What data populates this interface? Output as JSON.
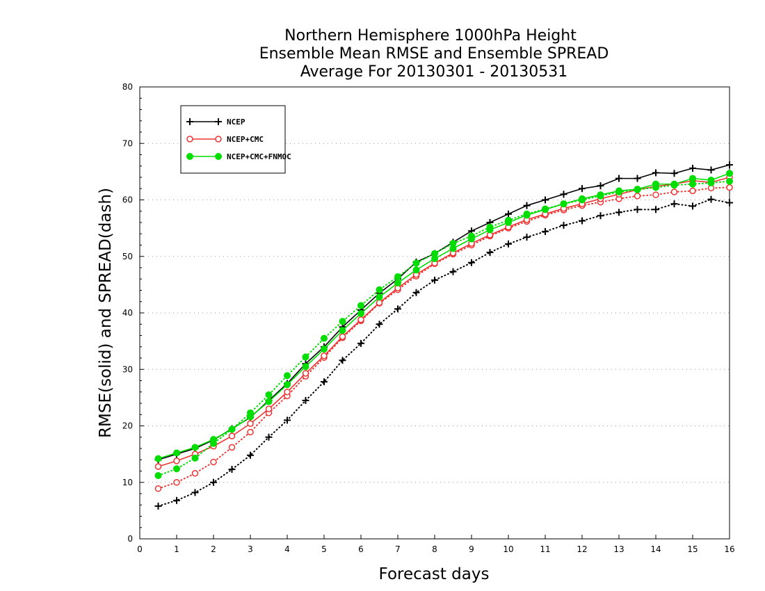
{
  "chart_data": {
    "type": "line",
    "title": [
      "Northern Hemisphere 1000hPa Height",
      "Ensemble Mean RMSE and Ensemble SPREAD",
      "Average For 20130301 - 20130531"
    ],
    "xlabel": "Forecast days",
    "ylabel": "RMSE(solid) and SPREAD(dash)",
    "xlim": [
      0,
      16
    ],
    "ylim": [
      0,
      80
    ],
    "xticks": [
      0,
      1,
      2,
      3,
      4,
      5,
      6,
      7,
      8,
      9,
      10,
      11,
      12,
      13,
      14,
      15,
      16
    ],
    "yticks": [
      0,
      10,
      20,
      30,
      40,
      50,
      60,
      70,
      80
    ],
    "grid": "horizontal dotted",
    "legend_position": "top-left",
    "x": [
      0.5,
      1,
      1.5,
      2,
      2.5,
      3,
      3.5,
      4,
      4.5,
      5,
      5.5,
      6,
      6.5,
      7,
      7.5,
      8,
      8.5,
      9,
      9.5,
      10,
      10.5,
      11,
      11.5,
      12,
      12.5,
      13,
      13.5,
      14,
      14.5,
      15,
      15.5,
      16
    ],
    "series": [
      {
        "name": "NCEP",
        "color": "#000000",
        "marker": "plus",
        "rmse": [
          14.0,
          15.0,
          16.0,
          17.5,
          19.5,
          21.5,
          24.5,
          27.5,
          31.0,
          34.0,
          37.5,
          40.5,
          43.5,
          46.0,
          49.0,
          50.5,
          52.5,
          54.5,
          56.0,
          57.5,
          59.0,
          60.0,
          61.0,
          62.0,
          62.5,
          63.8,
          63.8,
          64.8,
          64.7,
          65.6,
          65.3,
          66.2
        ],
        "spread": [
          5.8,
          6.8,
          8.2,
          10.0,
          12.3,
          14.8,
          18.0,
          21.0,
          24.5,
          27.8,
          31.6,
          34.6,
          38.0,
          40.7,
          43.6,
          45.8,
          47.3,
          48.9,
          50.7,
          52.2,
          53.4,
          54.4,
          55.5,
          56.3,
          57.2,
          57.8,
          58.3,
          58.3,
          59.3,
          58.9,
          60.1,
          59.5
        ]
      },
      {
        "name": "NCEP+CMC",
        "color": "#ee3333",
        "marker": "open-circle",
        "rmse": [
          12.8,
          13.8,
          15.0,
          16.4,
          18.2,
          20.4,
          23.0,
          26.0,
          29.3,
          32.4,
          35.8,
          38.8,
          41.8,
          44.4,
          46.8,
          48.8,
          50.6,
          52.3,
          53.8,
          55.2,
          56.5,
          57.5,
          58.5,
          59.3,
          60.2,
          61.0,
          61.8,
          62.4,
          62.8,
          63.4,
          63.1,
          64.0
        ],
        "spread": [
          8.9,
          10.0,
          11.6,
          13.6,
          16.2,
          18.9,
          22.3,
          25.3,
          28.8,
          32.1,
          35.6,
          38.6,
          41.7,
          44.1,
          46.5,
          48.7,
          50.4,
          52.0,
          53.6,
          55.0,
          56.2,
          57.3,
          58.2,
          59.0,
          59.6,
          60.2,
          60.7,
          60.9,
          61.4,
          61.6,
          62.1,
          62.2
        ]
      },
      {
        "name": "NCEP+CMC+FNMOC",
        "color": "#00dd00",
        "marker": "filled-circle",
        "rmse": [
          14.2,
          15.2,
          16.2,
          17.6,
          19.4,
          21.6,
          24.3,
          27.3,
          30.5,
          33.6,
          36.9,
          39.9,
          42.8,
          45.3,
          47.6,
          49.6,
          51.4,
          53.1,
          54.7,
          56.0,
          57.3,
          58.3,
          59.3,
          60.2,
          60.9,
          61.6,
          61.9,
          62.8,
          62.8,
          63.8,
          63.5,
          64.7
        ],
        "spread": [
          11.2,
          12.4,
          14.3,
          16.9,
          19.4,
          22.3,
          25.5,
          28.9,
          32.2,
          35.5,
          38.5,
          41.3,
          44.1,
          46.4,
          48.8,
          50.5,
          52.3,
          53.6,
          55.2,
          56.4,
          57.5,
          58.4,
          59.3,
          60.0,
          60.7,
          61.4,
          61.8,
          62.2,
          62.6,
          62.8,
          63.0,
          63.3
        ]
      }
    ]
  }
}
